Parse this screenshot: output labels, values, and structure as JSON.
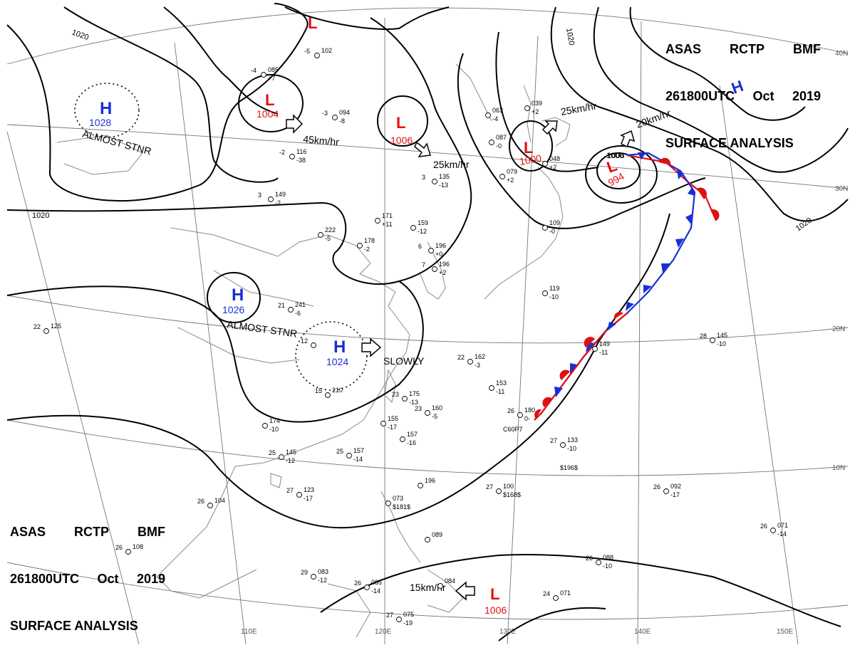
{
  "header": {
    "line1": [
      "ASAS",
      "RCTP",
      "BMF"
    ],
    "line2": [
      "261800UTC",
      "Oct",
      "2019"
    ],
    "line3": "SURFACE ANALYSIS"
  },
  "colors": {
    "high": "#1a2fd6",
    "low": "#e01010",
    "warm_front": "#e01010",
    "cold_front": "#1a2fd6",
    "isobar": "#000000",
    "land": "#888888",
    "grid": "#666666"
  },
  "lat_labels": [
    "40N",
    "30N",
    "20N",
    "10N"
  ],
  "lon_labels": [
    "110E",
    "120E",
    "130E",
    "140E",
    "150E"
  ],
  "isobar_labels": [
    "1020",
    "1020",
    "1020",
    "1020",
    "1008",
    "1000"
  ],
  "pressure_systems": [
    {
      "type": "H",
      "value": "1028",
      "note": "ALMOST STNR"
    },
    {
      "type": "H",
      "value": "1026",
      "note": "ALMOST STNR"
    },
    {
      "type": "H",
      "value": "1024",
      "note": "SLOWLY"
    },
    {
      "type": "H",
      "value": "",
      "note": ""
    },
    {
      "type": "L",
      "value": "1004",
      "note": "45km/hr"
    },
    {
      "type": "L",
      "value": "1006",
      "note": "25km/hr"
    },
    {
      "type": "L",
      "value": "1000",
      "note": "25km/hr"
    },
    {
      "type": "L",
      "value": "994",
      "note": "20km/hr"
    },
    {
      "type": "L",
      "value": "",
      "note": ""
    },
    {
      "type": "L",
      "value": "1006",
      "note": "15km/hr"
    }
  ],
  "stations": [
    {
      "temp": "-3",
      "pres": "094",
      "dew": "-8"
    },
    {
      "temp": "-5",
      "pres": "102",
      "dew": ""
    },
    {
      "temp": "-4",
      "pres": "085",
      "dew": "+7"
    },
    {
      "temp": "-2",
      "pres": "116",
      "dew": "-38"
    },
    {
      "temp": "3",
      "pres": "149",
      "dew": "-2"
    },
    {
      "temp": "3",
      "pres": "135",
      "dew": "-13"
    },
    {
      "temp": "",
      "pres": "171",
      "dew": "+11"
    },
    {
      "temp": "",
      "pres": "159",
      "dew": "-12"
    },
    {
      "temp": "",
      "pres": "222",
      "dew": "-5"
    },
    {
      "temp": "",
      "pres": "178",
      "dew": "-2"
    },
    {
      "temp": "6",
      "pres": "196",
      "dew": "+0"
    },
    {
      "temp": "7",
      "pres": "196",
      "dew": "+2"
    },
    {
      "temp": "21",
      "pres": "241",
      "dew": "-6"
    },
    {
      "temp": "12",
      "pres": "",
      "dew": ""
    },
    {
      "temp": "15",
      "pres": "210",
      "dew": ""
    },
    {
      "temp": "22",
      "pres": "162",
      "dew": "-3"
    },
    {
      "temp": "",
      "pres": "153",
      "dew": "-11"
    },
    {
      "temp": "23",
      "pres": "175",
      "dew": "-13"
    },
    {
      "temp": "23",
      "pres": "160",
      "dew": "-5"
    },
    {
      "temp": "",
      "pres": "155",
      "dew": "-17"
    },
    {
      "temp": "",
      "pres": "157",
      "dew": "-16"
    },
    {
      "temp": "",
      "pres": "174",
      "dew": "-10"
    },
    {
      "temp": "25",
      "pres": "145",
      "dew": "-12"
    },
    {
      "temp": "25",
      "pres": "157",
      "dew": "-14"
    },
    {
      "temp": "27",
      "pres": "123",
      "dew": "-17"
    },
    {
      "temp": "26",
      "pres": "104",
      "dew": ""
    },
    {
      "temp": "26",
      "pres": "108",
      "dew": ""
    },
    {
      "temp": "22",
      "pres": "125",
      "dew": ""
    },
    {
      "temp": "27",
      "pres": "100",
      "dew": "$168$"
    },
    {
      "temp": "27",
      "pres": "133",
      "dew": "-10"
    },
    {
      "temp": "26",
      "pres": "092",
      "dew": "-17"
    },
    {
      "temp": "26",
      "pres": "071",
      "dew": "-14"
    },
    {
      "temp": "24",
      "pres": "071",
      "dew": ""
    },
    {
      "temp": "26",
      "pres": "088",
      "dew": "-10"
    },
    {
      "temp": "29",
      "pres": "083",
      "dew": "-12"
    },
    {
      "temp": "26",
      "pres": "085",
      "dew": "-14"
    },
    {
      "temp": "27",
      "pres": "075",
      "dew": "-19"
    },
    {
      "temp": "28",
      "pres": "145",
      "dew": "-10"
    },
    {
      "temp": "",
      "pres": "149",
      "dew": "-11"
    },
    {
      "temp": "",
      "pres": "119",
      "dew": "-10"
    },
    {
      "temp": "",
      "pres": "109",
      "dew": "-0"
    },
    {
      "temp": "",
      "pres": "079",
      "dew": "+2"
    },
    {
      "temp": "",
      "pres": "048",
      "dew": "+2"
    },
    {
      "temp": "",
      "pres": "039",
      "dew": "+2"
    },
    {
      "temp": "",
      "pres": "063",
      "dew": "-4"
    },
    {
      "temp": "",
      "pres": "087",
      "dew": "-0"
    },
    {
      "temp": "",
      "pres": "084",
      "dew": ""
    },
    {
      "temp": "26",
      "pres": "180",
      "dew": "0-"
    },
    {
      "temp": "",
      "pres": "089",
      "dew": ""
    },
    {
      "temp": "",
      "pres": "196",
      "dew": ""
    },
    {
      "temp": "",
      "pres": "073",
      "dew": "$181$"
    }
  ],
  "misc_labels": [
    "$196$",
    "C60P7"
  ]
}
